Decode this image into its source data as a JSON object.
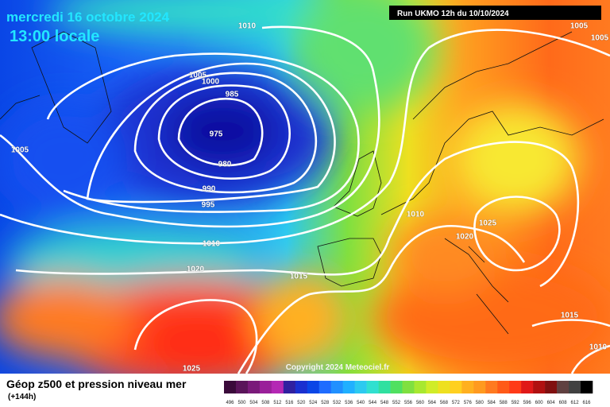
{
  "header": {
    "date": "mercredi 16 octobre 2024",
    "time": "13:00 locale",
    "run": "Run UKMO 12h du 10/10/2024"
  },
  "isobar_labels": [
    "1010",
    "1005",
    "1005",
    "1005",
    "1000",
    "985",
    "975",
    "980",
    "990",
    "995",
    "1005",
    "1010",
    "1020",
    "1015",
    "1010",
    "1020",
    "1025",
    "1015",
    "1010",
    "1025"
  ],
  "copyright": "Copyright 2024 Meteociel.fr",
  "footer": {
    "title": "Géop z500 et pression niveau mer",
    "lead": "(+144h)"
  },
  "color_scale": {
    "labels": [
      "496",
      "500",
      "504",
      "508",
      "512",
      "516",
      "520",
      "524",
      "528",
      "532",
      "536",
      "540",
      "544",
      "548",
      "552",
      "556",
      "560",
      "564",
      "568",
      "572",
      "576",
      "580",
      "584",
      "588",
      "592",
      "596",
      "600",
      "604",
      "608",
      "612",
      "616"
    ],
    "colors": [
      "#3a0a3a",
      "#5a145a",
      "#7a1a7a",
      "#9a209a",
      "#b428b4",
      "#3020a0",
      "#1a30d0",
      "#0a46e6",
      "#1f6cff",
      "#2090ff",
      "#20b0ff",
      "#2ccaf0",
      "#30e0d0",
      "#30e0a0",
      "#50e060",
      "#7fe040",
      "#a8e830",
      "#d0ec28",
      "#eee020",
      "#ffd020",
      "#ffb020",
      "#ff9a20",
      "#ff7a20",
      "#ff5a18",
      "#ff3a18",
      "#e01818",
      "#b01010",
      "#801010",
      "#604040",
      "#404040",
      "#000000"
    ]
  }
}
